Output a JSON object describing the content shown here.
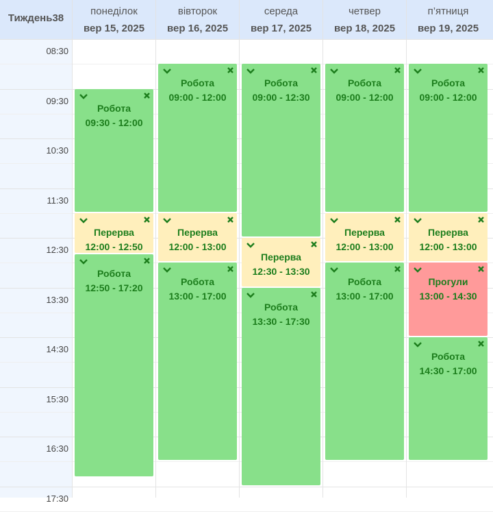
{
  "header": {
    "week": "Тиждень38"
  },
  "days": [
    {
      "name": "понеділок",
      "date": "вер 15, 2025",
      "events": [
        {
          "title": "Робота",
          "time": "09:30 - 12:00",
          "color": "#88e08a"
        },
        {
          "title": "Перерва",
          "time": "12:00 - 12:50",
          "color": "#ffefbc"
        },
        {
          "title": "Робота",
          "time": "12:50 - 17:20",
          "color": "#88e08a"
        }
      ]
    },
    {
      "name": "вівторок",
      "date": "вер 16, 2025",
      "events": [
        {
          "title": "Робота",
          "time": "09:00 - 12:00",
          "color": "#88e08a"
        },
        {
          "title": "Перерва",
          "time": "12:00 - 13:00",
          "color": "#ffefbc"
        },
        {
          "title": "Робота",
          "time": "13:00 - 17:00",
          "color": "#88e08a"
        }
      ]
    },
    {
      "name": "середа",
      "date": "вер 17, 2025",
      "events": [
        {
          "title": "Робота",
          "time": "09:00 - 12:30",
          "color": "#88e08a"
        },
        {
          "title": "Перерва",
          "time": "12:30 - 13:30",
          "color": "#ffefbc"
        },
        {
          "title": "Робота",
          "time": "13:30 - 17:30",
          "color": "#88e08a"
        }
      ]
    },
    {
      "name": "четвер",
      "date": "вер 18, 2025",
      "events": [
        {
          "title": "Робота",
          "time": "09:00 - 12:00",
          "color": "#88e08a"
        },
        {
          "title": "Перерва",
          "time": "12:00 - 13:00",
          "color": "#ffefbc"
        },
        {
          "title": "Робота",
          "time": "13:00 - 17:00",
          "color": "#88e08a"
        }
      ]
    },
    {
      "name": "п’ятниця",
      "date": "вер 19, 2025",
      "events": [
        {
          "title": "Робота",
          "time": "09:00 - 12:00",
          "color": "#88e08a"
        },
        {
          "title": "Перерва",
          "time": "12:00 - 13:00",
          "color": "#ffefbc"
        },
        {
          "title": "Прогули",
          "time": "13:00 - 14:30",
          "color": "#ff9a9a"
        },
        {
          "title": "Робота",
          "time": "14:30 - 17:00",
          "color": "#88e08a"
        }
      ]
    }
  ],
  "times": [
    "08:30",
    "09:30",
    "10:30",
    "11:30",
    "12:30",
    "13:30",
    "14:30",
    "15:30",
    "16:30",
    "17:30"
  ]
}
